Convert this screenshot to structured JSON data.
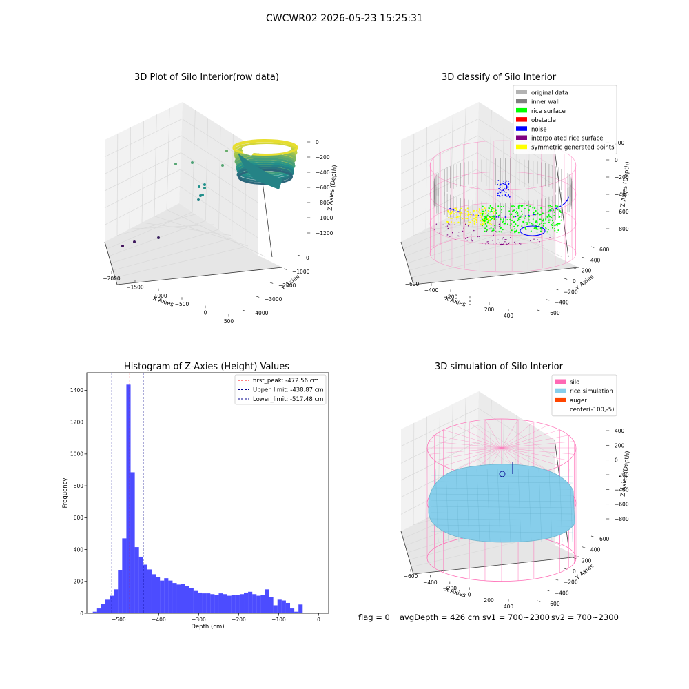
{
  "suptitle": "CWCWR02 2026-05-23 15:25:31",
  "status": {
    "flag": "flag = 0",
    "avg_depth": "avgDepth = 426 cm",
    "sv1": "sv1 = 700~2300",
    "sv2": "sv2 = 700~2300"
  },
  "colors": {
    "viridis_low": "#440154",
    "viridis_mid": "#21918c",
    "viridis_high": "#fde725",
    "original": "#b3b3b3",
    "inner_wall": "#808080",
    "rice_surface": "#00ff00",
    "obstacle": "#ff0000",
    "noise": "#0000ff",
    "interpolated": "#800080",
    "symmetric": "#ffff00",
    "silo": "#ff69b4",
    "rice_sim": "#87ceeb",
    "auger": "#ff4500",
    "hist_bar": "#0000ff"
  },
  "chart_data": [
    {
      "type": "scatter3d",
      "title": "3D Plot of Silo Interior(row data)",
      "xlabel": "X Axies",
      "ylabel": "Y Axies",
      "zlabel": "Z Axies (Depth)",
      "xticks": [
        "−2000",
        "−1500",
        "−1000",
        "−500",
        "0",
        "500"
      ],
      "yticks": [
        "−4000",
        "−3000",
        "−2000",
        "−1000",
        "0"
      ],
      "zticks": [
        "0",
        "−200",
        "−400",
        "−600",
        "−800",
        "−1000",
        "−1200"
      ],
      "colormap": "viridis",
      "outliers": [
        {
          "x": -2000,
          "y": -3500,
          "z": -1250
        },
        {
          "x": -1750,
          "y": -3200,
          "z": -1230
        },
        {
          "x": -1200,
          "y": -2600,
          "z": -1150
        },
        {
          "x": -700,
          "y": -800,
          "z": -750
        },
        {
          "x": -650,
          "y": -700,
          "z": -740
        },
        {
          "x": -600,
          "y": -650,
          "z": -700
        },
        {
          "x": -550,
          "y": -600,
          "z": -680
        },
        {
          "x": -500,
          "y": -550,
          "z": -650
        },
        {
          "x": -300,
          "y": -500,
          "z": -600
        },
        {
          "x": -700,
          "y": -1100,
          "z": -500
        },
        {
          "x": -400,
          "y": -300,
          "z": -350
        }
      ]
    },
    {
      "type": "scatter3d",
      "title": "3D classify of Silo Interior",
      "xlabel": "X Axies",
      "ylabel": "Y Axies",
      "zlabel": "Z Axies (Depth)",
      "xticks": [
        "−600",
        "−400",
        "−200",
        "0",
        "200",
        "400"
      ],
      "yticks": [
        "−600",
        "−400",
        "−200",
        "0",
        "200",
        "400",
        "600"
      ],
      "zticks": [
        "200",
        "0",
        "−200",
        "−400",
        "−600",
        "−800"
      ],
      "legend_position": "top-right",
      "legend": [
        {
          "name": "original data",
          "color_key": "original"
        },
        {
          "name": "inner wall",
          "color_key": "inner_wall"
        },
        {
          "name": "rice surface",
          "color_key": "rice_surface"
        },
        {
          "name": "obstacle",
          "color_key": "obstacle"
        },
        {
          "name": "noise",
          "color_key": "noise"
        },
        {
          "name": "interpolated rice surface",
          "color_key": "interpolated"
        },
        {
          "name": "symmetric generated points",
          "color_key": "symmetric"
        }
      ]
    },
    {
      "type": "bar",
      "title": "Histogram of Z-Axies (Height) Values",
      "xlabel": "Depth (cm)",
      "ylabel": "Frequency",
      "xlim": [
        -580,
        25
      ],
      "ylim": [
        0,
        1510
      ],
      "xticks": [
        -500,
        -400,
        -300,
        -200,
        -100,
        0
      ],
      "xtick_labels": [
        "−500",
        "−400",
        "−300",
        "−200",
        "−100",
        "0"
      ],
      "yticks": [
        0,
        200,
        400,
        600,
        800,
        1000,
        1200,
        1400
      ],
      "bin_start": -565,
      "bin_width": 10.5,
      "values": [
        10,
        30,
        60,
        85,
        110,
        150,
        270,
        470,
        1435,
        885,
        415,
        355,
        305,
        275,
        245,
        225,
        205,
        220,
        205,
        190,
        180,
        185,
        170,
        160,
        140,
        130,
        125,
        125,
        120,
        115,
        125,
        120,
        110,
        115,
        115,
        120,
        130,
        135,
        120,
        110,
        115,
        150,
        100,
        50,
        85,
        80,
        65,
        30,
        10,
        55
      ],
      "legend_position": "top-right",
      "lines": [
        {
          "name": "first_peak: -472.56 cm",
          "x": -472.56,
          "color": "#ff0000"
        },
        {
          "name": "Upper_limit: -438.87 cm",
          "x": -438.87,
          "color": "#00008b"
        },
        {
          "name": "Lower_limit: -517.48 cm",
          "x": -517.48,
          "color": "#00008b"
        }
      ]
    },
    {
      "type": "surface3d",
      "title": "3D simulation of Silo Interior",
      "xlabel": "X Axies",
      "ylabel": "Y Axies",
      "zlabel": "Z Axies (Depth)",
      "xticks": [
        "−600",
        "−400",
        "−200",
        "0",
        "200",
        "400"
      ],
      "yticks": [
        "−600",
        "−400",
        "−200",
        "0",
        "200",
        "400",
        "600"
      ],
      "zticks": [
        "400",
        "200",
        "0",
        "−200",
        "−400",
        "−600",
        "−800"
      ],
      "legend_position": "top-right",
      "legend": [
        {
          "name": "silo",
          "color_key": "silo"
        },
        {
          "name": "rice simulation",
          "color_key": "rice_sim"
        },
        {
          "name": "auger",
          "color_key": "auger"
        },
        {
          "name": "center(-100,-5)",
          "color_key": ""
        }
      ]
    }
  ]
}
